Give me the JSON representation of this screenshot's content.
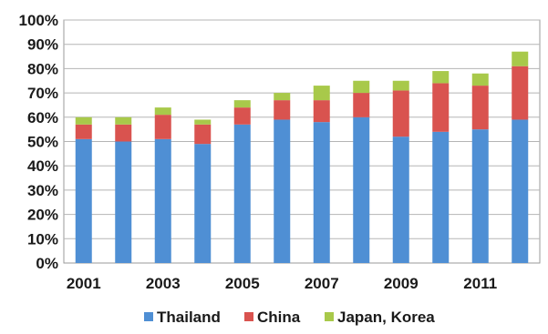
{
  "chart_data": {
    "type": "bar",
    "stacked": true,
    "title": "",
    "xlabel": "",
    "ylabel": "",
    "x": [
      2001,
      2002,
      2003,
      2004,
      2005,
      2006,
      2007,
      2008,
      2009,
      2010,
      2011,
      2012
    ],
    "x_tick_labels": [
      "2001",
      "2003",
      "2005",
      "2007",
      "2009",
      "2011"
    ],
    "x_tick_values": [
      2001,
      2003,
      2005,
      2007,
      2009,
      2011
    ],
    "y_tick_labels": [
      "0%",
      "10%",
      "20%",
      "30%",
      "40%",
      "50%",
      "60%",
      "70%",
      "80%",
      "90%",
      "100%"
    ],
    "ylim": [
      0,
      100
    ],
    "grid": true,
    "legend": "bottom",
    "series": [
      {
        "name": "Thailand",
        "color": "#4f8fd4",
        "values": [
          51,
          50,
          51,
          49,
          57,
          59,
          58,
          60,
          52,
          54,
          55,
          59
        ]
      },
      {
        "name": "China",
        "color": "#d9534f",
        "values": [
          6,
          7,
          10,
          8,
          7,
          8,
          9,
          10,
          19,
          20,
          18,
          22
        ]
      },
      {
        "name": "Japan, Korea",
        "color": "#a8c94a",
        "values": [
          3,
          3,
          3,
          2,
          3,
          3,
          6,
          5,
          4,
          5,
          5,
          6
        ]
      }
    ]
  }
}
